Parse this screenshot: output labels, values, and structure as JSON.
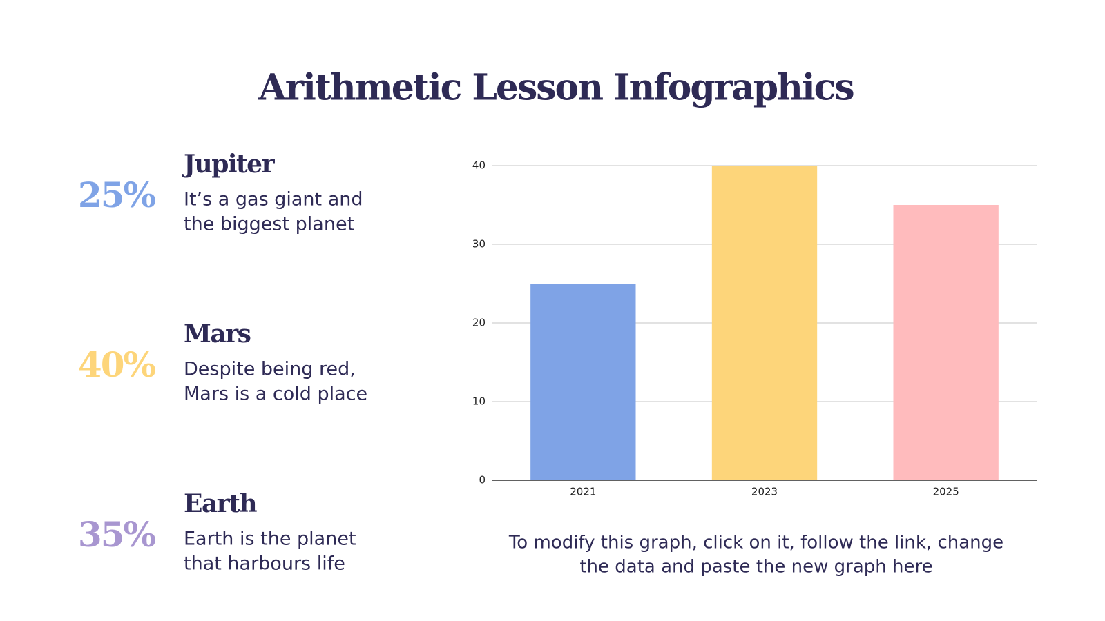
{
  "title": "Arithmetic Lesson Infographics",
  "items": [
    {
      "percent": "25%",
      "color": "#7fa3e6",
      "name": "Jupiter",
      "lines": [
        "It’s a gas giant and",
        "the biggest planet"
      ]
    },
    {
      "percent": "40%",
      "color": "#fdd57a",
      "name": "Mars",
      "lines": [
        "Despite being red,",
        "Mars is a cold place"
      ]
    },
    {
      "percent": "35%",
      "color": "#a896d0",
      "name": "Earth",
      "lines": [
        "Earth is the planet",
        "that harbours life"
      ]
    }
  ],
  "chart_data": {
    "type": "bar",
    "categories": [
      "2021",
      "2023",
      "2025"
    ],
    "values": [
      25,
      40,
      35
    ],
    "colors": [
      "#7fa3e6",
      "#fdd57a",
      "#ffbbbd"
    ],
    "ylim": [
      0,
      40
    ],
    "yticks": [
      0,
      10,
      20,
      30,
      40
    ],
    "grid": true
  },
  "note": [
    "To modify this graph, click on it, follow the link, change",
    "the data and paste the new graph here"
  ]
}
